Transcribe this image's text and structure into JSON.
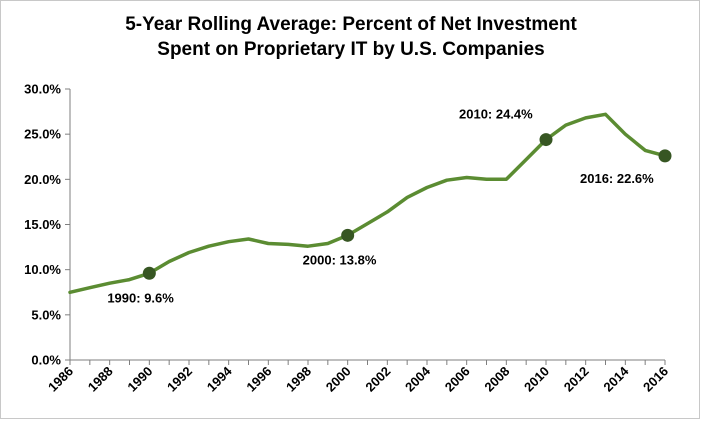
{
  "chart_data": {
    "type": "line",
    "title_line1": "5-Year Rolling Average: Percent of Net Investment",
    "title_line2": "Spent on Proprietary IT by U.S. Companies",
    "xlabel": "",
    "ylabel": "",
    "xlim": [
      1986,
      2016
    ],
    "ylim": [
      0,
      30
    ],
    "y_ticks": [
      0,
      5,
      10,
      15,
      20,
      25,
      30
    ],
    "y_tick_labels": [
      "0.0%",
      "5.0%",
      "10.0%",
      "15.0%",
      "20.0%",
      "25.0%",
      "30.0%"
    ],
    "x_ticks": [
      1986,
      1988,
      1990,
      1992,
      1994,
      1996,
      1998,
      2000,
      2002,
      2004,
      2006,
      2008,
      2010,
      2012,
      2014,
      2016
    ],
    "x_tick_labels": [
      "1986",
      "1988",
      "1990",
      "1992",
      "1994",
      "1996",
      "1998",
      "2000",
      "2002",
      "2004",
      "2006",
      "2008",
      "2010",
      "2012",
      "2014",
      "2016"
    ],
    "grid": false,
    "line_color": "#5b8c32",
    "marker_color": "#375623",
    "series": [
      {
        "x": [
          1986,
          1987,
          1988,
          1989,
          1990,
          1991,
          1992,
          1993,
          1994,
          1995,
          1996,
          1997,
          1998,
          1999,
          2000,
          2001,
          2002,
          2003,
          2004,
          2005,
          2006,
          2007,
          2008,
          2009,
          2010,
          2011,
          2012,
          2013,
          2014,
          2015,
          2016
        ],
        "y": [
          7.5,
          8.0,
          8.5,
          8.9,
          9.6,
          10.9,
          11.9,
          12.6,
          13.1,
          13.4,
          12.9,
          12.8,
          12.6,
          12.9,
          13.8,
          15.1,
          16.4,
          18.0,
          19.1,
          19.9,
          20.2,
          20.0,
          20.0,
          22.2,
          24.4,
          26.0,
          26.8,
          27.2,
          25.0,
          23.2,
          22.6
        ]
      }
    ],
    "annotations": [
      {
        "x": 1990,
        "y": 9.6,
        "label": "1990: 9.6%"
      },
      {
        "x": 2000,
        "y": 13.8,
        "label": "2000: 13.8%"
      },
      {
        "x": 2010,
        "y": 24.4,
        "label": "2010: 24.4%"
      },
      {
        "x": 2016,
        "y": 22.6,
        "label": "2016: 22.6%"
      }
    ]
  }
}
